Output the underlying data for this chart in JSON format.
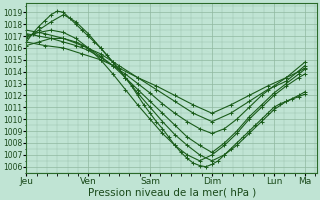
{
  "background_color": "#c0e4d4",
  "plot_bg_color": "#c0e4d4",
  "grid_color": "#90b8a0",
  "line_color": "#1a5c1a",
  "xlabel": "Pression niveau de la mer( hPa )",
  "ylim": [
    1005.5,
    1019.8
  ],
  "yticks": [
    1006,
    1007,
    1008,
    1009,
    1010,
    1011,
    1012,
    1013,
    1014,
    1015,
    1016,
    1017,
    1018,
    1019
  ],
  "xtick_labels": [
    "Jeu",
    "Ven",
    "Sam",
    "Dim",
    "Lun",
    "Ma"
  ],
  "xtick_positions": [
    0.0,
    1.0,
    2.0,
    3.0,
    4.0,
    4.5
  ],
  "x_total": 4.7,
  "lines": [
    [
      0.0,
      1016.5,
      0.1,
      1017.2,
      0.2,
      1017.8,
      0.3,
      1018.3,
      0.4,
      1018.8,
      0.5,
      1019.1,
      0.6,
      1019.0,
      0.7,
      1018.5,
      0.8,
      1018.0,
      0.9,
      1017.5,
      1.0,
      1017.0,
      1.1,
      1016.5,
      1.2,
      1016.0,
      1.3,
      1015.4,
      1.4,
      1014.8,
      1.5,
      1014.2,
      1.6,
      1013.5,
      1.7,
      1012.8,
      1.8,
      1012.0,
      1.9,
      1011.2,
      2.0,
      1010.5,
      2.1,
      1009.8,
      2.2,
      1009.2,
      2.3,
      1008.5,
      2.4,
      1007.8,
      2.5,
      1007.2,
      2.6,
      1006.7,
      2.7,
      1006.3,
      2.8,
      1006.1,
      2.9,
      1006.0,
      3.0,
      1006.2,
      3.1,
      1006.5,
      3.2,
      1007.0,
      3.3,
      1007.5,
      3.4,
      1008.0,
      3.5,
      1008.5,
      3.6,
      1009.0,
      3.7,
      1009.5,
      3.8,
      1010.0,
      3.9,
      1010.5,
      4.0,
      1011.0,
      4.1,
      1011.3,
      4.2,
      1011.5,
      4.3,
      1011.7,
      4.4,
      1011.9,
      4.5,
      1012.1
    ],
    [
      0.0,
      1016.8,
      0.2,
      1017.5,
      0.4,
      1018.2,
      0.6,
      1018.8,
      0.8,
      1018.2,
      1.0,
      1017.2,
      1.2,
      1016.0,
      1.4,
      1014.8,
      1.6,
      1013.5,
      1.8,
      1012.2,
      2.0,
      1011.0,
      2.2,
      1009.8,
      2.4,
      1008.7,
      2.6,
      1007.8,
      2.8,
      1007.0,
      3.0,
      1006.5,
      3.2,
      1007.0,
      3.4,
      1007.8,
      3.6,
      1008.8,
      3.8,
      1009.8,
      4.0,
      1010.8,
      4.2,
      1011.5,
      4.4,
      1012.0,
      4.5,
      1012.3
    ],
    [
      0.0,
      1017.0,
      0.2,
      1017.3,
      0.4,
      1017.5,
      0.6,
      1017.3,
      0.8,
      1016.8,
      1.0,
      1016.0,
      1.2,
      1015.0,
      1.4,
      1013.8,
      1.6,
      1012.5,
      1.8,
      1011.2,
      2.0,
      1010.0,
      2.2,
      1008.8,
      2.4,
      1007.8,
      2.6,
      1007.0,
      2.8,
      1006.5,
      3.0,
      1007.0,
      3.2,
      1007.8,
      3.4,
      1008.8,
      3.6,
      1010.0,
      3.8,
      1011.0,
      4.0,
      1012.0,
      4.2,
      1012.8,
      4.4,
      1013.5,
      4.5,
      1013.8
    ],
    [
      0.0,
      1016.2,
      0.2,
      1016.5,
      0.4,
      1016.8,
      0.6,
      1016.8,
      0.8,
      1016.5,
      1.0,
      1016.0,
      1.2,
      1015.3,
      1.4,
      1014.5,
      1.6,
      1013.5,
      1.8,
      1012.5,
      2.0,
      1011.5,
      2.2,
      1010.5,
      2.4,
      1009.5,
      2.6,
      1008.5,
      2.8,
      1007.8,
      3.0,
      1007.2,
      3.2,
      1008.0,
      3.4,
      1009.0,
      3.6,
      1010.2,
      3.8,
      1011.2,
      4.0,
      1012.2,
      4.2,
      1013.0,
      4.4,
      1013.8,
      4.5,
      1014.2
    ],
    [
      0.0,
      1017.2,
      0.2,
      1017.0,
      0.4,
      1016.8,
      0.6,
      1016.5,
      0.8,
      1016.2,
      1.0,
      1015.8,
      1.2,
      1015.2,
      1.4,
      1014.5,
      1.6,
      1013.8,
      1.8,
      1013.0,
      2.0,
      1012.2,
      2.2,
      1011.3,
      2.4,
      1010.5,
      2.6,
      1009.8,
      2.8,
      1009.2,
      3.0,
      1008.8,
      3.2,
      1009.2,
      3.4,
      1010.0,
      3.6,
      1011.0,
      3.8,
      1012.0,
      4.0,
      1012.8,
      4.2,
      1013.5,
      4.4,
      1014.0,
      4.5,
      1014.3
    ],
    [
      0.0,
      1017.5,
      0.3,
      1017.2,
      0.6,
      1016.8,
      0.9,
      1016.2,
      1.2,
      1015.5,
      1.5,
      1014.5,
      1.8,
      1013.5,
      2.1,
      1012.5,
      2.4,
      1011.5,
      2.7,
      1010.5,
      3.0,
      1009.8,
      3.3,
      1010.5,
      3.6,
      1011.5,
      3.9,
      1012.5,
      4.2,
      1013.2,
      4.5,
      1014.5
    ],
    [
      0.0,
      1016.5,
      0.3,
      1016.2,
      0.6,
      1016.0,
      0.9,
      1015.5,
      1.2,
      1015.0,
      1.5,
      1014.3,
      1.8,
      1013.5,
      2.1,
      1012.8,
      2.4,
      1012.0,
      2.7,
      1011.2,
      3.0,
      1010.5,
      3.3,
      1011.2,
      3.6,
      1012.0,
      3.9,
      1012.8,
      4.2,
      1013.5,
      4.5,
      1014.8
    ]
  ],
  "ytick_fontsize": 5.5,
  "xtick_fontsize": 6.5,
  "xlabel_fontsize": 7.5,
  "linewidth": 0.8,
  "marker_size": 2.5
}
